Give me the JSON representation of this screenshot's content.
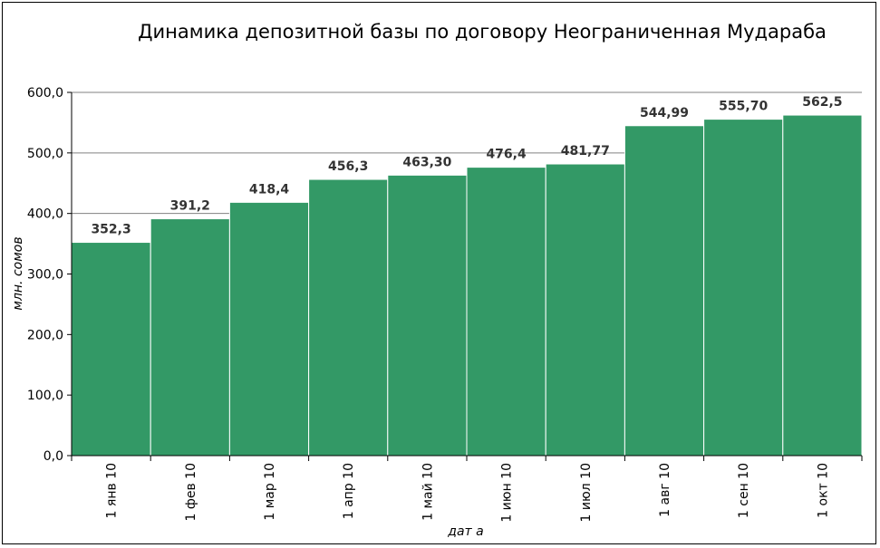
{
  "chart_data": {
    "type": "bar",
    "title": "Динамика депозитной базы по договору Неограниченная Мудараба",
    "xlabel": "дат а",
    "ylabel": "млн. сомов",
    "categories": [
      "1 янв 10",
      "1 фев 10",
      "1 мар 10",
      "1 апр 10",
      "1 май 10",
      "1 июн 10",
      "1 июл 10",
      "1 авг 10",
      "1 сен 10",
      "1 окт 10"
    ],
    "values": [
      352.3,
      391.2,
      418.4,
      456.3,
      463.3,
      476.4,
      481.77,
      544.99,
      555.7,
      562.5
    ],
    "value_labels": [
      "352,3",
      "391,2",
      "418,4",
      "456,3",
      "463,30",
      "476,4",
      "481,77",
      "544,99",
      "555,70",
      "562,5"
    ],
    "ylim": [
      0,
      600
    ],
    "yticks": [
      0,
      100,
      200,
      300,
      400,
      500,
      600
    ],
    "ytick_labels": [
      "0,0",
      "100,0",
      "200,0",
      "300,0",
      "400,0",
      "500,0",
      "600,0"
    ],
    "grid": "horizontal",
    "legend": "none",
    "bar_color": "#339966"
  }
}
